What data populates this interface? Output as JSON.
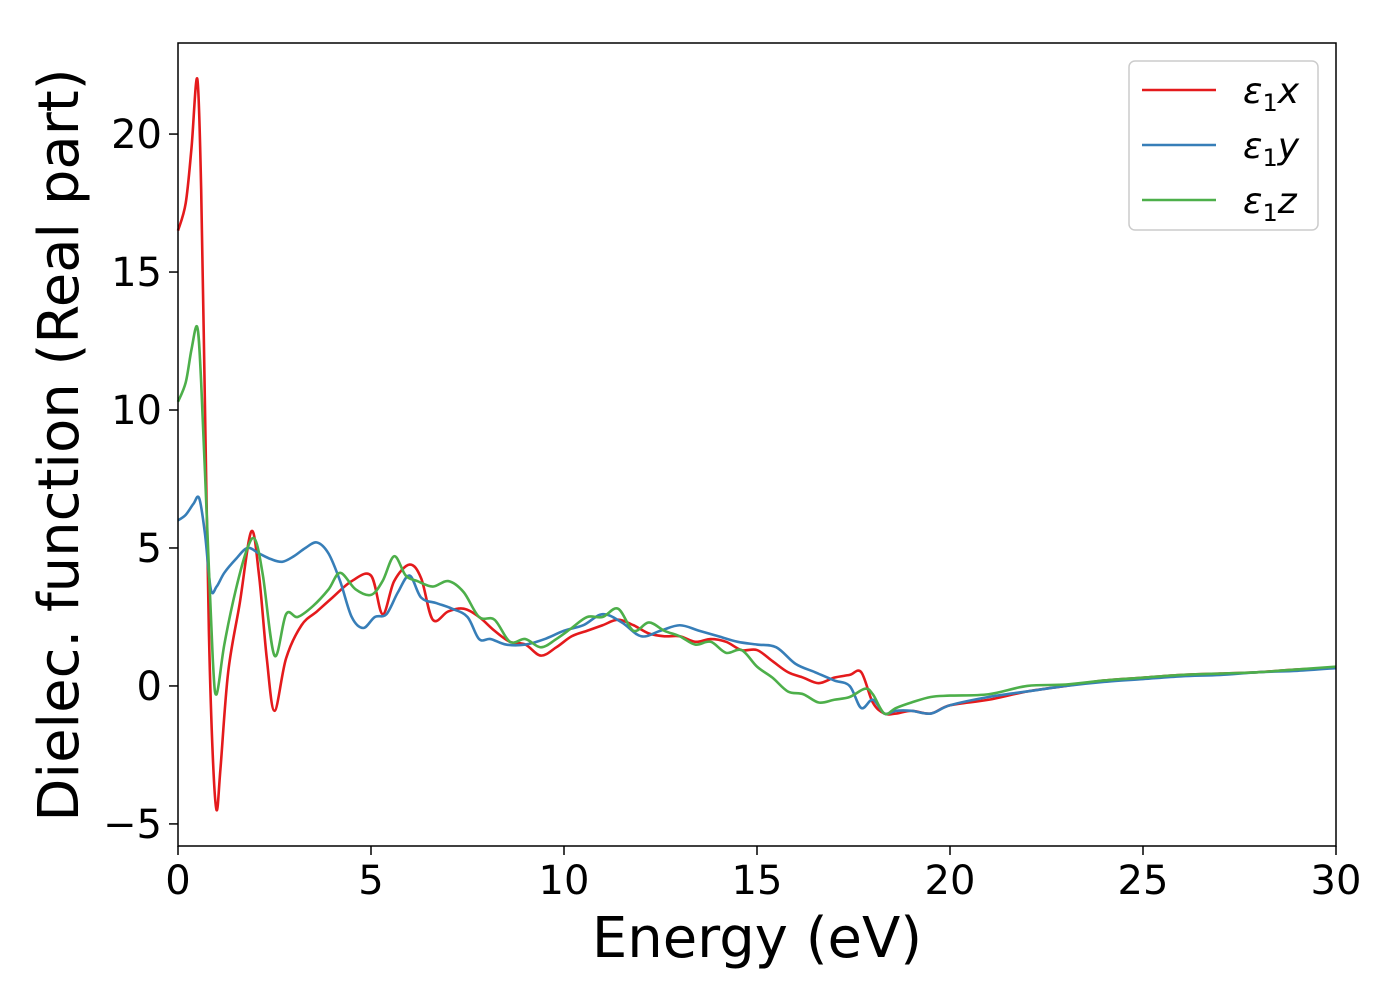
{
  "chart_data": {
    "type": "line",
    "title": "",
    "xlabel": "Energy (eV)",
    "ylabel": "Dielec. function (Real part)",
    "xlim": [
      0,
      30
    ],
    "ylim": [
      -5.8,
      23.3
    ],
    "xticks": [
      0,
      5,
      10,
      15,
      20,
      25,
      30
    ],
    "xtick_labels": [
      "0",
      "5",
      "10",
      "15",
      "20",
      "25",
      "30"
    ],
    "yticks": [
      -5,
      0,
      5,
      10,
      15,
      20
    ],
    "ytick_labels": [
      "−5",
      "0",
      "5",
      "10",
      "15",
      "20"
    ],
    "grid": false,
    "legend_position": "top-right",
    "series": [
      {
        "name": "ε₁x",
        "legend_base": "ε",
        "legend_sub": "1",
        "legend_var": "x",
        "color": "#e41a1c",
        "x": [
          0,
          0.2,
          0.35,
          0.5,
          0.6,
          0.7,
          0.8,
          0.9,
          1.0,
          1.1,
          1.3,
          1.6,
          1.9,
          2.1,
          2.3,
          2.5,
          2.8,
          3.2,
          3.6,
          4.0,
          4.5,
          5.0,
          5.3,
          5.6,
          6.0,
          6.3,
          6.6,
          7.0,
          7.4,
          7.8,
          8.2,
          8.6,
          9.0,
          9.4,
          9.8,
          10.2,
          10.6,
          11.0,
          11.4,
          11.8,
          12.2,
          12.6,
          13.0,
          13.4,
          13.8,
          14.2,
          14.6,
          15.0,
          15.4,
          15.8,
          16.2,
          16.6,
          17.0,
          17.4,
          17.7,
          18.0,
          18.3,
          18.6,
          19.0,
          19.5,
          20.0,
          21.0,
          22.0,
          23.0,
          24.0,
          25.0,
          26.0,
          27.0,
          28.0,
          29.0,
          30.0
        ],
        "y": [
          16.5,
          17.5,
          19.5,
          22.0,
          18.0,
          10.0,
          2.0,
          -2.5,
          -4.5,
          -3.0,
          0.5,
          3.0,
          5.6,
          4.0,
          1.0,
          -0.9,
          1.0,
          2.2,
          2.7,
          3.2,
          3.8,
          4.0,
          2.6,
          3.8,
          4.4,
          3.9,
          2.4,
          2.7,
          2.8,
          2.5,
          2.0,
          1.6,
          1.5,
          1.1,
          1.4,
          1.8,
          2.0,
          2.2,
          2.4,
          2.2,
          1.9,
          1.8,
          1.8,
          1.6,
          1.7,
          1.6,
          1.3,
          1.3,
          0.9,
          0.5,
          0.3,
          0.1,
          0.3,
          0.4,
          0.5,
          -0.6,
          -1.0,
          -1.0,
          -0.9,
          -1.0,
          -0.7,
          -0.5,
          -0.2,
          0.0,
          0.2,
          0.3,
          0.4,
          0.45,
          0.5,
          0.6,
          0.65
        ]
      },
      {
        "name": "ε₁y",
        "legend_base": "ε",
        "legend_sub": "1",
        "legend_var": "y",
        "color": "#377eb8",
        "x": [
          0,
          0.2,
          0.4,
          0.55,
          0.7,
          0.85,
          1.0,
          1.2,
          1.5,
          1.8,
          2.1,
          2.4,
          2.7,
          3.0,
          3.3,
          3.6,
          3.9,
          4.2,
          4.5,
          4.8,
          5.1,
          5.4,
          5.7,
          6.0,
          6.3,
          6.7,
          7.1,
          7.5,
          7.8,
          8.1,
          8.5,
          9.0,
          9.5,
          10.0,
          10.5,
          11.0,
          11.5,
          12.0,
          12.5,
          13.0,
          13.5,
          14.0,
          14.5,
          15.0,
          15.5,
          16.0,
          16.5,
          17.0,
          17.4,
          17.7,
          18.0,
          18.3,
          18.6,
          19.0,
          19.5,
          20.0,
          21.0,
          22.0,
          23.0,
          24.0,
          25.0,
          26.0,
          27.0,
          28.0,
          29.0,
          30.0
        ],
        "y": [
          6.0,
          6.2,
          6.6,
          6.8,
          5.5,
          3.5,
          3.6,
          4.1,
          4.6,
          5.0,
          4.8,
          4.6,
          4.5,
          4.7,
          5.0,
          5.2,
          4.8,
          3.8,
          2.5,
          2.1,
          2.5,
          2.6,
          3.4,
          4.0,
          3.2,
          3.0,
          2.8,
          2.5,
          1.7,
          1.7,
          1.5,
          1.5,
          1.7,
          2.0,
          2.2,
          2.6,
          2.3,
          1.8,
          2.0,
          2.2,
          2.0,
          1.8,
          1.6,
          1.5,
          1.4,
          0.8,
          0.5,
          0.2,
          0.0,
          -0.8,
          -0.5,
          -1.0,
          -0.9,
          -0.9,
          -1.0,
          -0.7,
          -0.4,
          -0.2,
          0.0,
          0.15,
          0.25,
          0.35,
          0.4,
          0.5,
          0.55,
          0.65
        ]
      },
      {
        "name": "ε₁z",
        "legend_base": "ε",
        "legend_sub": "1",
        "legend_var": "z",
        "color": "#4daf4a",
        "x": [
          0,
          0.2,
          0.35,
          0.5,
          0.6,
          0.75,
          0.9,
          1.0,
          1.2,
          1.5,
          1.8,
          2.0,
          2.2,
          2.5,
          2.8,
          3.1,
          3.5,
          3.9,
          4.2,
          4.6,
          5.0,
          5.3,
          5.6,
          5.9,
          6.2,
          6.6,
          7.0,
          7.4,
          7.8,
          8.2,
          8.6,
          9.0,
          9.4,
          9.8,
          10.2,
          10.6,
          11.0,
          11.4,
          11.8,
          12.2,
          12.6,
          13.0,
          13.4,
          13.8,
          14.2,
          14.6,
          15.0,
          15.4,
          15.8,
          16.2,
          16.6,
          17.0,
          17.4,
          17.8,
          18.0,
          18.3,
          18.6,
          19.0,
          19.5,
          20.0,
          21.0,
          22.0,
          23.0,
          24.0,
          25.0,
          26.0,
          27.0,
          28.0,
          29.0,
          30.0
        ],
        "y": [
          10.3,
          11.0,
          12.2,
          13.0,
          11.0,
          6.0,
          1.0,
          -0.3,
          1.5,
          3.5,
          5.0,
          5.3,
          4.0,
          1.1,
          2.6,
          2.5,
          2.9,
          3.5,
          4.1,
          3.5,
          3.3,
          3.8,
          4.7,
          4.0,
          3.8,
          3.6,
          3.8,
          3.4,
          2.5,
          2.4,
          1.6,
          1.7,
          1.4,
          1.7,
          2.1,
          2.5,
          2.5,
          2.8,
          2.0,
          2.3,
          2.0,
          1.8,
          1.5,
          1.6,
          1.2,
          1.3,
          0.7,
          0.3,
          -0.2,
          -0.3,
          -0.6,
          -0.5,
          -0.4,
          -0.1,
          -0.3,
          -1.0,
          -0.8,
          -0.6,
          -0.4,
          -0.35,
          -0.3,
          0.0,
          0.05,
          0.2,
          0.3,
          0.4,
          0.45,
          0.5,
          0.6,
          0.7
        ]
      }
    ]
  }
}
